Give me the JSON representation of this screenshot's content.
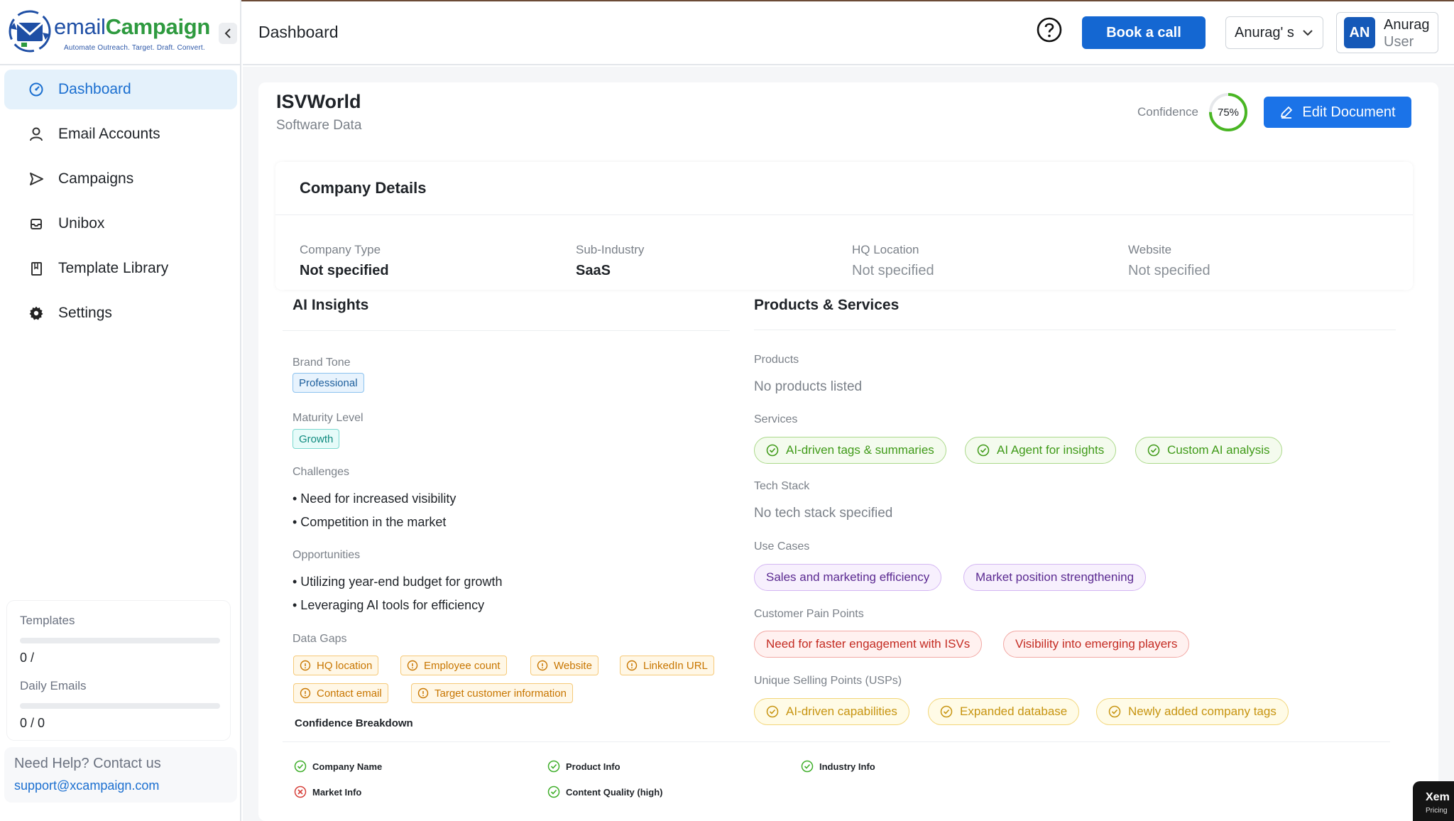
{
  "brand": {
    "name_part1": "email",
    "name_part2": "Campaign",
    "tagline": "Automate Outreach. Target. Draft. Convert."
  },
  "sidebar": {
    "items": [
      {
        "label": "Dashboard",
        "icon": "dashboard-gauge-icon",
        "active": true
      },
      {
        "label": "Email Accounts",
        "icon": "user-icon"
      },
      {
        "label": "Campaigns",
        "icon": "send-icon"
      },
      {
        "label": "Unibox",
        "icon": "inbox-icon"
      },
      {
        "label": "Template Library",
        "icon": "book-icon"
      },
      {
        "label": "Settings",
        "icon": "gear-icon"
      }
    ],
    "usage": {
      "templates_label": "Templates",
      "templates_value": "0 /",
      "daily_label": "Daily Emails",
      "daily_value": "0 / 0"
    },
    "help": {
      "title": "Need Help? Contact us",
      "email": "support@xcampaign.com"
    }
  },
  "header": {
    "title": "Dashboard",
    "book_call": "Book a call",
    "workspace": "Anurag' s",
    "avatar_initials": "AN",
    "user_name": "Anurag",
    "user_role": "User"
  },
  "document": {
    "title": "ISVWorld",
    "subtitle": "Software Data",
    "confidence_label": "Confidence",
    "confidence_value": "75%",
    "confidence_fraction": 0.75,
    "edit_button": "Edit Document"
  },
  "company_details": {
    "title": "Company Details",
    "fields": [
      {
        "label": "Company Type",
        "value": "Not specified"
      },
      {
        "label": "Sub-Industry",
        "value": "SaaS"
      },
      {
        "label": "HQ Location",
        "value": "Not specified"
      },
      {
        "label": "Website",
        "value": "Not specified"
      }
    ]
  },
  "ai_insights": {
    "title": "AI Insights",
    "brand_tone_label": "Brand Tone",
    "brand_tone": "Professional",
    "maturity_label": "Maturity Level",
    "maturity": "Growth",
    "challenges_label": "Challenges",
    "challenges": [
      "• Need for increased visibility",
      "• Competition in the market"
    ],
    "opportunities_label": "Opportunities",
    "opportunities": [
      "• Utilizing year-end budget for growth",
      "• Leveraging AI tools for efficiency"
    ],
    "data_gaps_label": "Data Gaps",
    "data_gaps": [
      "HQ location",
      "Employee count",
      "Website",
      "LinkedIn URL",
      "Contact email",
      "Target customer information"
    ]
  },
  "products_services": {
    "title": "Products & Services",
    "products_label": "Products",
    "products_empty": "No products listed",
    "services_label": "Services",
    "services": [
      "AI-driven tags & summaries",
      "AI Agent for insights",
      "Custom AI analysis"
    ],
    "tech_label": "Tech Stack",
    "tech_empty": "No tech stack specified",
    "use_cases_label": "Use Cases",
    "use_cases": [
      "Sales and marketing efficiency",
      "Market position strengthening"
    ],
    "pain_label": "Customer Pain Points",
    "pain_points": [
      "Need for faster engagement with ISVs",
      "Visibility into emerging players"
    ],
    "usp_label": "Unique Selling Points (USPs)",
    "usps": [
      "AI-driven capabilities",
      "Expanded database",
      "Newly added company tags"
    ]
  },
  "confidence_breakdown": {
    "title": "Confidence Breakdown",
    "items": [
      {
        "label": "Company Name",
        "status": "ok"
      },
      {
        "label": "Product Info",
        "status": "ok"
      },
      {
        "label": "Industry Info",
        "status": "ok"
      },
      {
        "label": "Market Info",
        "status": "missing"
      },
      {
        "label": "Content Quality (high)",
        "status": "ok"
      }
    ]
  },
  "widget": {
    "title": "Xem",
    "subtitle": "Pricing"
  },
  "colors": {
    "primary": "#1467d2",
    "brand_green": "#2e9a3f",
    "success": "#3f9a18",
    "warning": "#c87600",
    "danger": "#c42b22"
  }
}
